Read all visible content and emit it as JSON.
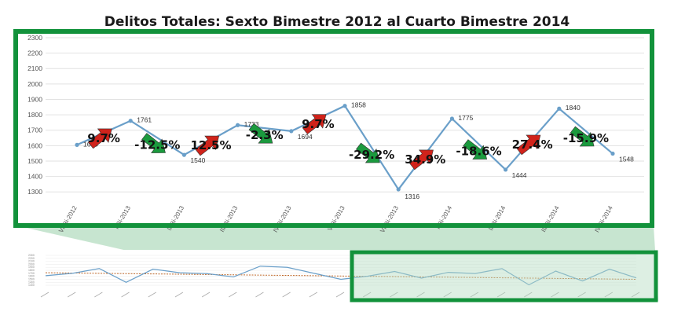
{
  "chart_data": {
    "type": "line",
    "title": "Delitos Totales: Sexto Bimestre 2012 al Cuarto Bimestre 2014",
    "categories": [
      "VI-Bi-2012",
      "I-Bi-2013",
      "II-Bi-2013",
      "III-Bi-2013",
      "IV-Bi-2013",
      "V-Bi-2013",
      "VI-Bi-2013",
      "I-Bi-2014",
      "II-Bi-2014",
      "III-Bi-2014",
      "IV-Bi-2014"
    ],
    "values": [
      1605,
      1761,
      1540,
      1733,
      1694,
      1858,
      1316,
      1775,
      1444,
      1840,
      1548
    ],
    "yticks": [
      1300,
      1400,
      1500,
      1600,
      1700,
      1800,
      1900,
      2000,
      2100,
      2200,
      2300
    ],
    "ylim": [
      1250,
      2300
    ],
    "line_color": "#6a9fc9",
    "frame_color": "#12923b",
    "up_color": "#d0231b",
    "down_color": "#1b9a3e",
    "changes": [
      {
        "label": "9.7%",
        "dir": "up"
      },
      {
        "label": "-12.5%",
        "dir": "down"
      },
      {
        "label": "12.5%",
        "dir": "up"
      },
      {
        "label": "-2.3%",
        "dir": "down"
      },
      {
        "label": "9.7%",
        "dir": "up"
      },
      {
        "label": "-29.2%",
        "dir": "down"
      },
      {
        "label": "34.9%",
        "dir": "up"
      },
      {
        "label": "-18.6%",
        "dir": "down"
      },
      {
        "label": "27.4%",
        "dir": "up"
      },
      {
        "label": "-15.9%",
        "dir": "down"
      }
    ],
    "grid": true,
    "overview": {
      "values": [
        1620,
        1700,
        1860,
        1400,
        1840,
        1720,
        1690,
        1580,
        1940,
        1900,
        1700,
        1500,
        1605,
        1761,
        1540,
        1733,
        1694,
        1858,
        1316,
        1775,
        1444,
        1840,
        1548
      ],
      "trend": [
        1720,
        1500
      ]
    }
  }
}
